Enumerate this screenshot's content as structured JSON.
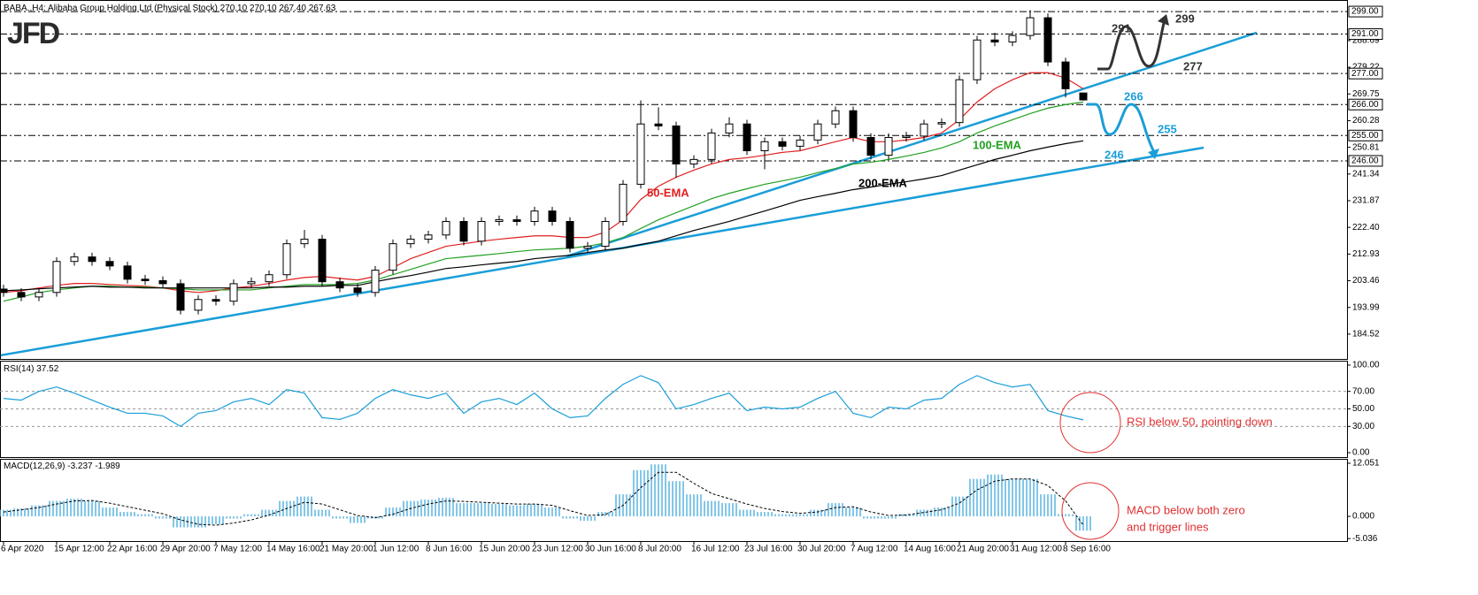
{
  "logo": "JFD",
  "chart_data": [
    {
      "type": "candlestick",
      "title": "BABA.,H4:  Alibaba Group Holding Ltd (Physical Stock)",
      "ohlc_labels": [
        "270.10",
        "270.10",
        "267.40",
        "267.63"
      ],
      "categories": [
        "6 Apr 2020",
        null,
        null,
        "15 Apr 12:00",
        null,
        null,
        "22 Apr 16:00",
        null,
        null,
        "29 Apr 20:00",
        null,
        null,
        "7 May 12:00",
        null,
        null,
        "14 May 16:00",
        null,
        null,
        "21 May 20:00",
        null,
        null,
        "1 Jun 12:00",
        null,
        null,
        "8 Jun 16:00",
        null,
        null,
        "15 Jun 20:00",
        null,
        null,
        "23 Jun 12:00",
        null,
        null,
        "30 Jun 16:00",
        null,
        null,
        "8 Jul 20:00",
        null,
        null,
        "16 Jul 12:00",
        null,
        null,
        "23 Jul 16:00",
        null,
        null,
        "30 Jul 20:00",
        null,
        null,
        "7 Aug 12:00",
        null,
        null,
        "14 Aug 16:00",
        null,
        null,
        "21 Aug 20:00",
        null,
        null,
        "31 Aug 12:00",
        null,
        null,
        "8 Sep 16:00",
        null
      ],
      "open": [
        200.5,
        199.3,
        197.7,
        199.3,
        210.3,
        211.9,
        210.3,
        208.7,
        204.0,
        203.5,
        202.4,
        193.0,
        196.8,
        196.2,
        202.4,
        203.1,
        205.6,
        216.6,
        218.2,
        203.1,
        200.9,
        199.3,
        207.2,
        216.6,
        218.2,
        219.7,
        224.5,
        217.5,
        224.5,
        225.1,
        224.5,
        228.2,
        224.5,
        215.0,
        215.7,
        224.5,
        237.7,
        259.1,
        258.4,
        244.9,
        246.5,
        255.9,
        259.1,
        249.6,
        252.8,
        251.2,
        253.4,
        259.1,
        263.8,
        254.3,
        248.0,
        254.3,
        254.8,
        259.1,
        259.6,
        274.8,
        288.9,
        288.2,
        290.5,
        296.8,
        281.1,
        270.1
      ],
      "high": [
        202.0,
        200.8,
        200.8,
        211.8,
        213.4,
        213.4,
        211.8,
        210.2,
        205.5,
        205.0,
        203.9,
        198.3,
        198.3,
        203.9,
        204.6,
        207.1,
        218.1,
        221.5,
        219.7,
        204.6,
        202.4,
        208.7,
        218.1,
        219.7,
        221.2,
        226.0,
        226.0,
        226.0,
        226.6,
        226.6,
        229.7,
        229.7,
        226.0,
        217.2,
        226.0,
        239.2,
        267.5,
        265.0,
        259.9,
        248.0,
        257.4,
        261.5,
        260.6,
        254.3,
        254.3,
        254.9,
        260.6,
        265.3,
        265.3,
        255.8,
        255.8,
        256.3,
        260.6,
        261.1,
        276.3,
        290.4,
        291.5,
        292.0,
        299.5,
        298.3,
        282.6,
        270.1
      ],
      "low": [
        197.8,
        196.2,
        196.2,
        197.8,
        208.8,
        208.8,
        207.2,
        202.5,
        202.0,
        200.9,
        191.5,
        191.5,
        194.7,
        194.7,
        200.9,
        201.6,
        204.1,
        215.1,
        201.6,
        199.4,
        197.8,
        197.8,
        205.7,
        215.1,
        216.7,
        218.2,
        216.0,
        216.0,
        223.0,
        223.0,
        223.0,
        223.0,
        213.5,
        213.5,
        214.2,
        223.0,
        236.2,
        256.9,
        240.0,
        243.4,
        245.0,
        254.4,
        248.1,
        243.0,
        249.7,
        249.7,
        251.9,
        257.6,
        252.8,
        246.5,
        246.5,
        252.8,
        253.3,
        257.6,
        258.1,
        273.3,
        286.7,
        286.7,
        289.0,
        279.6,
        268.5,
        267.4
      ],
      "close": [
        199.3,
        197.7,
        199.3,
        210.3,
        211.9,
        210.3,
        208.7,
        204.0,
        203.5,
        202.4,
        193.0,
        196.8,
        196.2,
        202.4,
        203.1,
        205.6,
        216.6,
        218.2,
        203.1,
        200.9,
        199.3,
        207.2,
        216.6,
        218.2,
        219.7,
        224.5,
        217.5,
        224.5,
        225.1,
        224.5,
        228.2,
        224.5,
        215.0,
        215.7,
        224.5,
        237.7,
        259.1,
        258.4,
        244.9,
        246.5,
        255.9,
        259.1,
        249.6,
        252.8,
        251.2,
        253.4,
        259.1,
        263.8,
        254.3,
        248.0,
        254.3,
        254.8,
        259.1,
        259.6,
        274.8,
        288.9,
        288.2,
        290.5,
        296.8,
        281.1,
        271.6,
        267.63
      ],
      "up_color": "#ffffff",
      "down_color": "#000000",
      "series": [
        {
          "name": "50-EMA",
          "color": "#e02020",
          "values": [
            199.3,
            199.9,
            200.9,
            201.8,
            202.5,
            202.5,
            202.1,
            201.8,
            201.5,
            200.9,
            199.9,
            199.3,
            199.9,
            200.9,
            201.5,
            202.5,
            203.7,
            204.6,
            205.0,
            204.3,
            203.7,
            205.0,
            208.1,
            211.3,
            213.5,
            215.7,
            216.6,
            217.5,
            218.2,
            218.8,
            219.4,
            219.4,
            218.8,
            218.8,
            220.7,
            225.1,
            232.3,
            237.0,
            240.2,
            242.7,
            244.9,
            246.5,
            247.1,
            248.0,
            249.0,
            249.6,
            251.2,
            252.8,
            254.3,
            252.8,
            252.8,
            253.4,
            254.3,
            255.9,
            260.6,
            266.9,
            271.6,
            274.8,
            277.3,
            277.3,
            275.4,
            271.6
          ]
        },
        {
          "name": "100-EMA",
          "color": "#22a022",
          "values": [
            196.2,
            197.7,
            199.3,
            200.2,
            200.9,
            201.5,
            201.5,
            201.2,
            201.2,
            200.9,
            200.6,
            200.2,
            200.2,
            200.2,
            200.2,
            200.9,
            201.5,
            202.1,
            202.1,
            202.1,
            202.5,
            203.7,
            205.6,
            207.5,
            209.4,
            211.3,
            211.9,
            212.5,
            213.1,
            213.8,
            214.4,
            214.7,
            215.0,
            215.7,
            216.9,
            218.8,
            222.0,
            225.1,
            227.6,
            230.1,
            232.6,
            234.5,
            236.1,
            237.7,
            238.9,
            240.2,
            241.8,
            243.3,
            244.9,
            245.5,
            246.5,
            247.7,
            249.0,
            250.6,
            252.8,
            255.9,
            258.4,
            260.6,
            262.8,
            264.7,
            266.0,
            266.9
          ]
        },
        {
          "name": "200-EMA",
          "color": "#000000",
          "values": [
            199.9,
            200.2,
            200.6,
            200.9,
            201.2,
            201.5,
            201.2,
            201.2,
            200.9,
            200.9,
            200.9,
            200.9,
            200.9,
            200.9,
            200.9,
            201.2,
            201.2,
            201.5,
            201.5,
            201.8,
            201.8,
            203.1,
            204.3,
            205.3,
            206.5,
            207.8,
            208.4,
            209.1,
            209.7,
            210.3,
            211.3,
            211.9,
            212.5,
            213.5,
            214.4,
            215.0,
            216.3,
            217.5,
            219.4,
            221.3,
            222.9,
            224.5,
            226.4,
            228.2,
            230.1,
            232.0,
            233.3,
            234.5,
            235.8,
            236.7,
            237.7,
            238.6,
            239.6,
            240.8,
            242.7,
            244.6,
            246.5,
            248.0,
            249.6,
            250.9,
            252.1,
            253.1
          ]
        }
      ],
      "ylim": [
        175.7,
        303.1
      ],
      "yticks": [
        {
          "value": 288.69,
          "label": "288.69"
        },
        {
          "value": 279.22,
          "label": "279.22"
        },
        {
          "value": 269.75,
          "label": "269.75"
        },
        {
          "value": 260.28,
          "label": "260.28"
        },
        {
          "value": 250.81,
          "label": "250.81"
        },
        {
          "value": 241.34,
          "label": "241.34"
        },
        {
          "value": 231.87,
          "label": "231.87"
        },
        {
          "value": 222.4,
          "label": "222.40"
        },
        {
          "value": 212.93,
          "label": "212.93"
        },
        {
          "value": 203.46,
          "label": "203.46"
        },
        {
          "value": 193.99,
          "label": "193.99"
        },
        {
          "value": 184.52,
          "label": "184.52"
        }
      ],
      "level_ticks": [
        {
          "value": 299,
          "label": "299.00"
        },
        {
          "value": 291,
          "label": "291.00"
        },
        {
          "value": 277,
          "label": "277.00"
        },
        {
          "value": 266,
          "label": "266.00"
        },
        {
          "value": 255,
          "label": "255.00"
        },
        {
          "value": 246,
          "label": "246.00"
        }
      ],
      "annotations": [
        "291",
        "299",
        "277",
        "266",
        "255",
        "246"
      ]
    },
    {
      "type": "line",
      "title": "RSI(14)",
      "color": "#1a9ed8",
      "values": [
        62,
        60,
        70,
        75,
        68,
        60,
        52,
        45,
        45,
        42,
        30,
        45,
        48,
        58,
        62,
        55,
        72,
        68,
        40,
        38,
        45,
        62,
        72,
        66,
        62,
        68,
        45,
        58,
        62,
        55,
        68,
        50,
        40,
        42,
        62,
        78,
        88,
        80,
        50,
        55,
        62,
        68,
        48,
        52,
        50,
        52,
        62,
        70,
        45,
        40,
        52,
        50,
        60,
        62,
        78,
        88,
        80,
        75,
        78,
        48,
        42,
        37.52
      ],
      "ylim": [
        -5,
        105
      ],
      "yticks": [
        {
          "value": 100,
          "label": "100.00"
        },
        {
          "value": 70,
          "label": "70.00"
        },
        {
          "value": 50,
          "label": "50.00"
        },
        {
          "value": 30,
          "label": "30.00"
        },
        {
          "value": 0,
          "label": "0.00"
        }
      ],
      "grid": true,
      "annotations": [
        "RSI below 50, pointing down"
      ]
    },
    {
      "type": "macd",
      "title": "MACD(12,26,9)",
      "series": [
        {
          "color": "#5ab4e0",
          "values": [
            1.5,
            1.8,
            2.5,
            3.5,
            4.0,
            3.5,
            2.0,
            1.0,
            0.5,
            -0.5,
            -2.5,
            -2.5,
            -1.8,
            -0.5,
            0.5,
            1.5,
            3.5,
            4.5,
            1.5,
            -0.5,
            -1.5,
            -0.5,
            2.0,
            3.5,
            3.8,
            4.2,
            3.0,
            3.0,
            2.8,
            2.5,
            2.8,
            2.0,
            -0.5,
            -1.0,
            1.0,
            5.0,
            10.5,
            11.8,
            8.0,
            5.0,
            3.5,
            3.0,
            1.5,
            1.0,
            0.5,
            0.5,
            1.5,
            3.0,
            2.0,
            -0.5,
            -0.5,
            0.5,
            1.5,
            2.0,
            4.5,
            8.5,
            9.5,
            8.5,
            8.5,
            5.0,
            0.5,
            -3.237
          ]
        },
        {
          "color": "#000000",
          "values": [
            1.0,
            1.5,
            2.0,
            2.8,
            3.5,
            3.6,
            3.0,
            2.2,
            1.4,
            0.6,
            -0.8,
            -1.8,
            -2.0,
            -1.5,
            -0.8,
            0.3,
            1.8,
            3.2,
            2.8,
            1.5,
            0.2,
            -0.3,
            0.5,
            1.8,
            2.8,
            3.5,
            3.4,
            3.2,
            3.0,
            2.8,
            2.8,
            2.5,
            1.3,
            0.2,
            0.4,
            2.5,
            6.5,
            10.0,
            10.0,
            7.5,
            5.2,
            4.0,
            2.8,
            1.8,
            1.1,
            0.7,
            1.0,
            2.0,
            2.2,
            1.0,
            0.2,
            0.3,
            0.9,
            1.5,
            3.0,
            6.0,
            8.0,
            8.5,
            8.5,
            7.0,
            3.5,
            -1.989
          ]
        }
      ],
      "ylim": [
        -5.6,
        13.05
      ],
      "yticks": [
        {
          "value": 12.051,
          "label": "12.051"
        },
        {
          "value": 0,
          "label": "0.000"
        },
        {
          "value": -5.036,
          "label": "-5.036"
        }
      ],
      "annotations": [
        "MACD below both zero",
        "and trigger lines"
      ]
    }
  ]
}
